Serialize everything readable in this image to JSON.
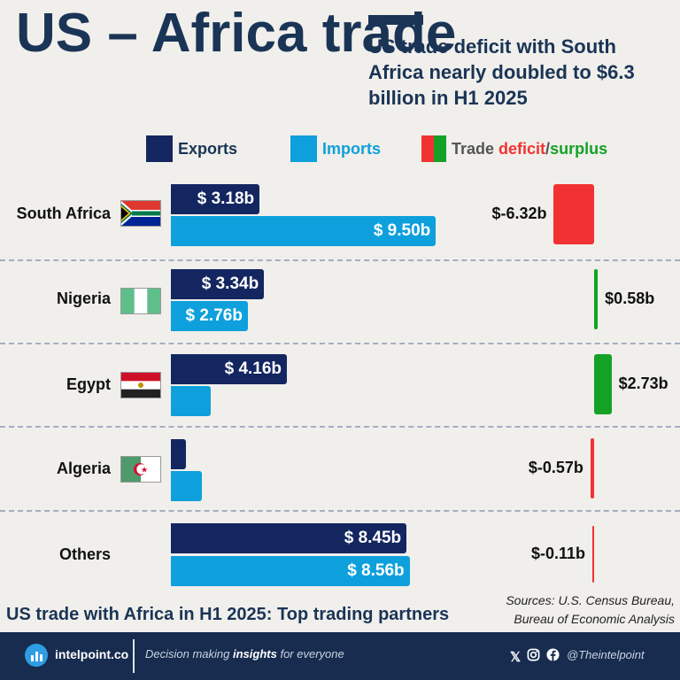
{
  "title": "US – Africa trade",
  "subtitle": "US trade deficit with South Africa nearly doubled to $6.3 billion in H1 2025",
  "legend": {
    "exports": "Exports",
    "imports": "Imports",
    "balance_prefix": "Trade ",
    "balance_deficit": "deficit",
    "balance_slash": "/",
    "balance_surplus": "surplus"
  },
  "colors": {
    "exports": "#132660",
    "imports": "#0ea0dc",
    "deficit": "#f23232",
    "surplus": "#14a126",
    "title": "#1a3456"
  },
  "chart_data": {
    "type": "bar",
    "orientation": "horizontal",
    "categories": [
      "South Africa",
      "Nigeria",
      "Egypt",
      "Algeria",
      "Others"
    ],
    "series": [
      {
        "name": "Exports",
        "values": [
          3.18,
          3.34,
          4.16,
          0.55,
          8.45
        ],
        "labels": [
          "$ 3.18b",
          "$ 3.34b",
          "$ 4.16b",
          "",
          "$ 8.45b"
        ]
      },
      {
        "name": "Imports",
        "values": [
          9.5,
          2.76,
          1.43,
          1.12,
          8.56
        ],
        "labels": [
          "$ 9.50b",
          "$ 2.76b",
          "",
          "",
          "$ 8.56b"
        ]
      }
    ],
    "balance": {
      "name": "Trade deficit/surplus",
      "values": [
        -6.32,
        0.58,
        2.73,
        -0.57,
        -0.11
      ],
      "labels": [
        "$-6.32b",
        "$0.58b",
        "$2.73b",
        "$-0.57b",
        "$-0.11b"
      ]
    },
    "caption": "US trade with Africa in H1 2025: Top trading partners"
  },
  "source_lines": [
    "Sources: U.S. Census Bureau,",
    "Bureau of Economic Analysis"
  ],
  "footer": {
    "brand": "intelpoint.co",
    "tagline_pre": "Decision making ",
    "tagline_em": "insights",
    "tagline_post": " for everyone",
    "x_glyph": "𝕏",
    "handle": "@Theintelpoint"
  },
  "icons": [
    "intelpoint-logo-icon",
    "x-icon",
    "instagram-icon",
    "facebook-icon",
    "flag-icons"
  ]
}
